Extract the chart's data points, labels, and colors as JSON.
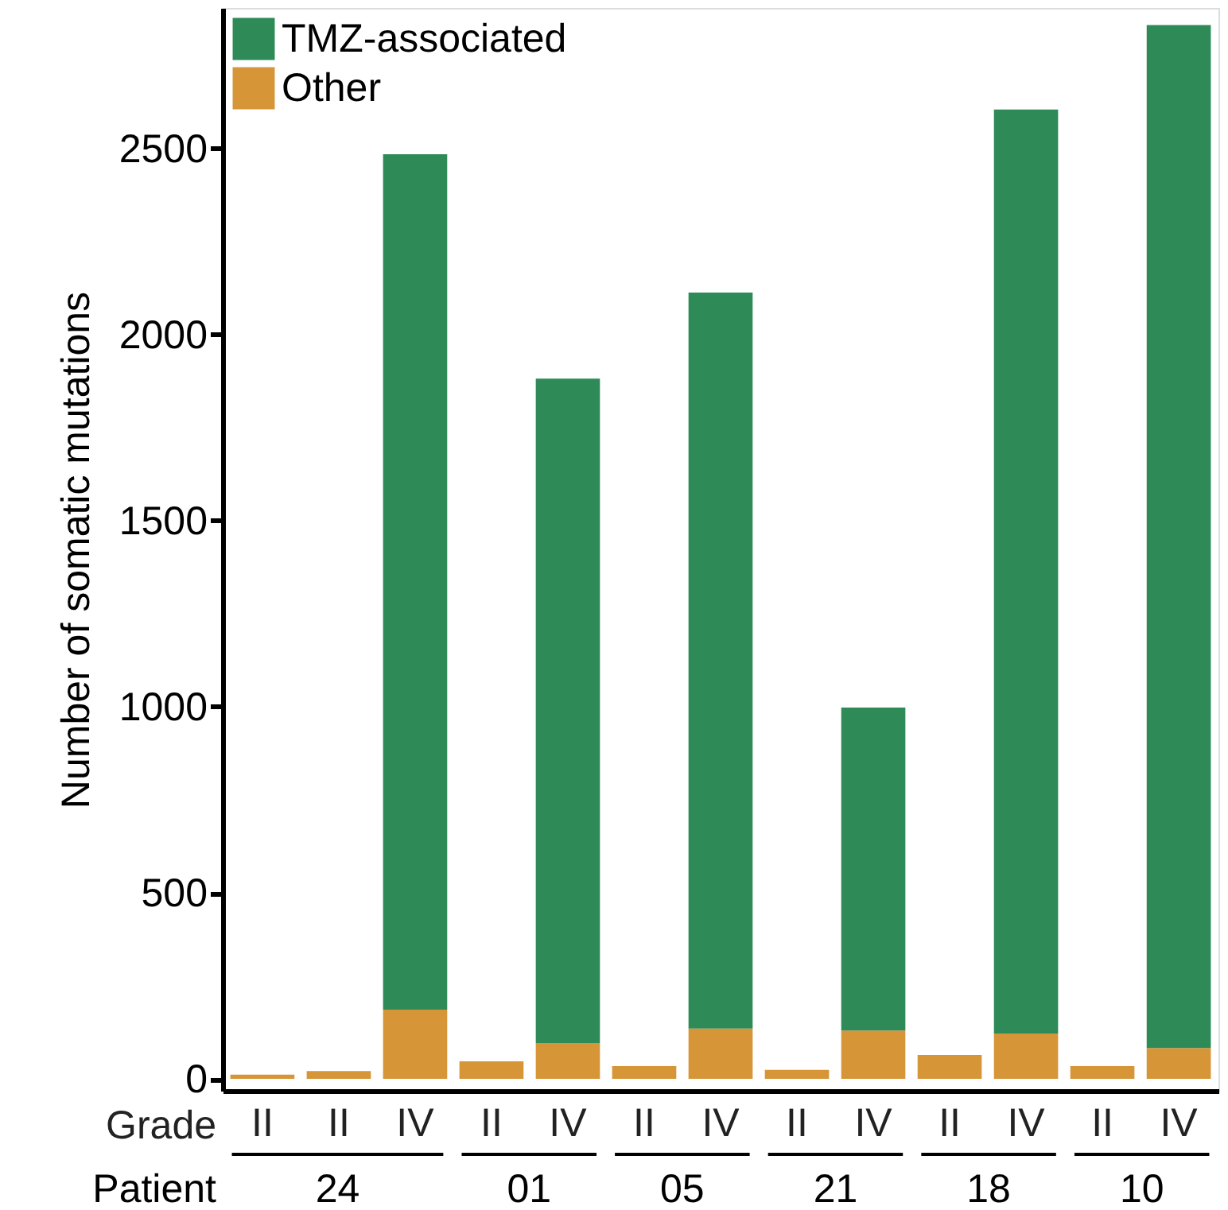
{
  "chart_data": {
    "type": "bar",
    "stacked": true,
    "ylabel": "Number of somatic mutations",
    "xlabel": "Grade",
    "categories": [
      "II",
      "II",
      "IV",
      "II",
      "IV",
      "II",
      "IV",
      "II",
      "IV",
      "II",
      "IV",
      "II",
      "IV"
    ],
    "series": [
      {
        "name": "Other",
        "color": "#d69537",
        "values": [
          11,
          21,
          186,
          47,
          96,
          34,
          135,
          24,
          130,
          64,
          122,
          34,
          83
        ]
      },
      {
        "name": "TMZ-associated",
        "color": "#2e8b57",
        "values": [
          null,
          null,
          2299,
          null,
          1786,
          null,
          1978,
          null,
          868,
          null,
          2483,
          null,
          2749
        ]
      }
    ],
    "ylim": [
      -32,
      2878
    ],
    "yticks": [
      0,
      500,
      1000,
      1500,
      2000,
      2500
    ],
    "grid": false,
    "legend": "top left",
    "annotations": [
      "Patient",
      "24",
      "01",
      "05",
      "21",
      "18",
      "10"
    ]
  }
}
